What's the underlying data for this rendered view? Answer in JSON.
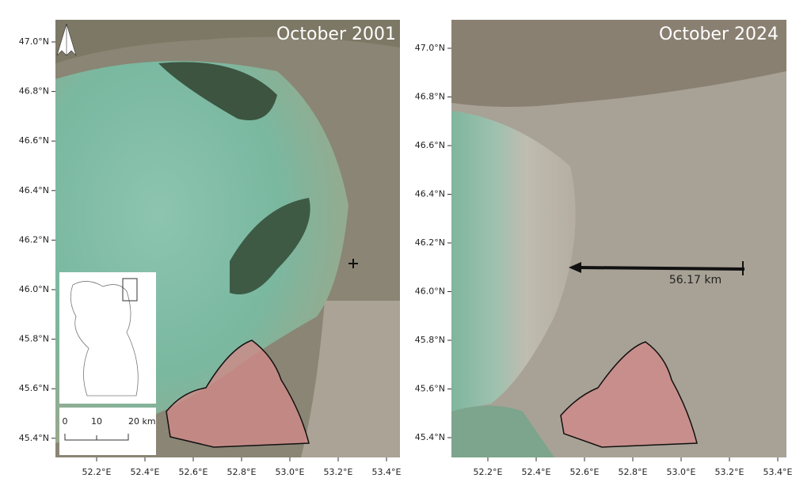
{
  "panels": [
    {
      "title": "October 2001",
      "lat_labels": [
        "47.0°N",
        "46.8°N",
        "46.6°N",
        "46.4°N",
        "46.2°N",
        "46.0°N",
        "45.8°N",
        "45.6°N",
        "45.4°N"
      ],
      "lon_labels": [
        "52.2°E",
        "52.4°E",
        "52.6°E",
        "52.8°E",
        "53.0°E",
        "53.2°E",
        "53.4°E"
      ],
      "scale_bar": [
        "0",
        "10",
        "20 km"
      ]
    },
    {
      "title": "October 2024",
      "lat_labels": [
        "47.0°N",
        "46.8°N",
        "46.6°N",
        "46.4°N",
        "46.2°N",
        "46.0°N",
        "45.8°N",
        "45.6°N",
        "45.4°N"
      ],
      "lon_labels": [
        "52.2°E",
        "52.4°E",
        "52.6°E",
        "52.8°E",
        "53.0°E",
        "53.2°E",
        "53.4°E"
      ],
      "distance": "56.17 km"
    }
  ]
}
